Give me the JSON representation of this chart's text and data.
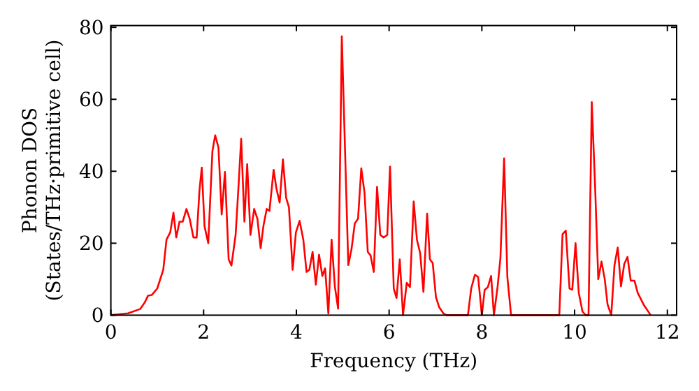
{
  "chart_data": {
    "type": "line",
    "xlabel": "Frequency (THz)",
    "ylabel": "Phonon DOS\n(States/THz·primitive cell)",
    "xlim": [
      0,
      12.2
    ],
    "ylim": [
      0,
      80.5
    ],
    "xticks": [
      0,
      2,
      4,
      6,
      8,
      10,
      12
    ],
    "yticks": [
      0,
      20,
      40,
      60,
      80
    ],
    "grid": false,
    "marker": "none",
    "line_style": "solid",
    "series": [
      {
        "color": "#ff0000",
        "x": [
          0,
          0.37,
          0.63,
          0.73,
          0.8,
          0.88,
          1.0,
          1.13,
          1.2,
          1.28,
          1.35,
          1.41,
          1.48,
          1.55,
          1.63,
          1.7,
          1.78,
          1.85,
          1.91,
          1.96,
          2.02,
          2.1,
          2.19,
          2.25,
          2.32,
          2.39,
          2.46,
          2.54,
          2.6,
          2.69,
          2.75,
          2.81,
          2.88,
          2.94,
          3.01,
          3.09,
          3.16,
          3.23,
          3.29,
          3.36,
          3.42,
          3.51,
          3.57,
          3.64,
          3.71,
          3.78,
          3.84,
          3.92,
          3.99,
          4.07,
          4.15,
          4.22,
          4.28,
          4.35,
          4.42,
          4.49,
          4.56,
          4.62,
          4.69,
          4.76,
          4.83,
          4.9,
          4.98,
          5.12,
          5.19,
          5.26,
          5.33,
          5.4,
          5.47,
          5.54,
          5.6,
          5.67,
          5.74,
          5.81,
          5.88,
          5.96,
          6.02,
          6.1,
          6.16,
          6.23,
          6.3,
          6.38,
          6.45,
          6.53,
          6.6,
          6.67,
          6.74,
          6.82,
          6.88,
          6.94,
          7.01,
          7.08,
          7.17,
          7.24,
          7.7,
          7.77,
          7.85,
          7.92,
          8.0,
          8.06,
          8.13,
          8.2,
          8.26,
          8.34,
          8.4,
          8.48,
          8.55,
          8.63,
          9.67,
          9.74,
          9.81,
          9.89,
          9.95,
          10.02,
          10.09,
          10.17,
          10.24,
          10.3,
          10.37,
          10.44,
          10.51,
          10.58,
          10.65,
          10.71,
          10.79,
          10.86,
          10.93,
          11.0,
          11.07,
          11.14,
          11.21,
          11.29,
          11.36,
          11.49,
          11.64
        ],
        "values": [
          0,
          0.5,
          1.7,
          3.5,
          5.4,
          5.6,
          7.4,
          12.6,
          21,
          23,
          28.5,
          21.6,
          26,
          26,
          29.5,
          26.8,
          21.6,
          21.6,
          34.6,
          41,
          24.7,
          20,
          45.6,
          50,
          46.6,
          28,
          39.8,
          15.5,
          13.8,
          22.3,
          35.2,
          49,
          26,
          42,
          22.3,
          29.5,
          26.8,
          18.6,
          24.8,
          29.5,
          29,
          40.4,
          35.2,
          31.3,
          43.3,
          32.6,
          30,
          12.6,
          23,
          26.2,
          21,
          12,
          12.6,
          17.6,
          8.5,
          16.8,
          10.9,
          13,
          0.5,
          21,
          8,
          1.8,
          77.5,
          13.9,
          18.4,
          25.5,
          26.8,
          40.8,
          34,
          17.6,
          16.6,
          12,
          35.7,
          22.3,
          21.6,
          22.3,
          41.3,
          7.4,
          4.8,
          15.5,
          0,
          9,
          7.8,
          31.6,
          21,
          17.2,
          6.5,
          28.2,
          15.5,
          14.5,
          5,
          2.2,
          0.5,
          0,
          0,
          7.4,
          11.2,
          10.6,
          0,
          7,
          7.8,
          10.9,
          0,
          8,
          15.8,
          43.6,
          10.6,
          0,
          0,
          22.5,
          23.5,
          7.4,
          7.1,
          20,
          6.2,
          1,
          0,
          0,
          59.2,
          36.5,
          10,
          14.9,
          10,
          3,
          0,
          13.9,
          18.8,
          8,
          14.2,
          16.2,
          9.6,
          9.6,
          6.2,
          2.9,
          0
        ]
      }
    ]
  }
}
